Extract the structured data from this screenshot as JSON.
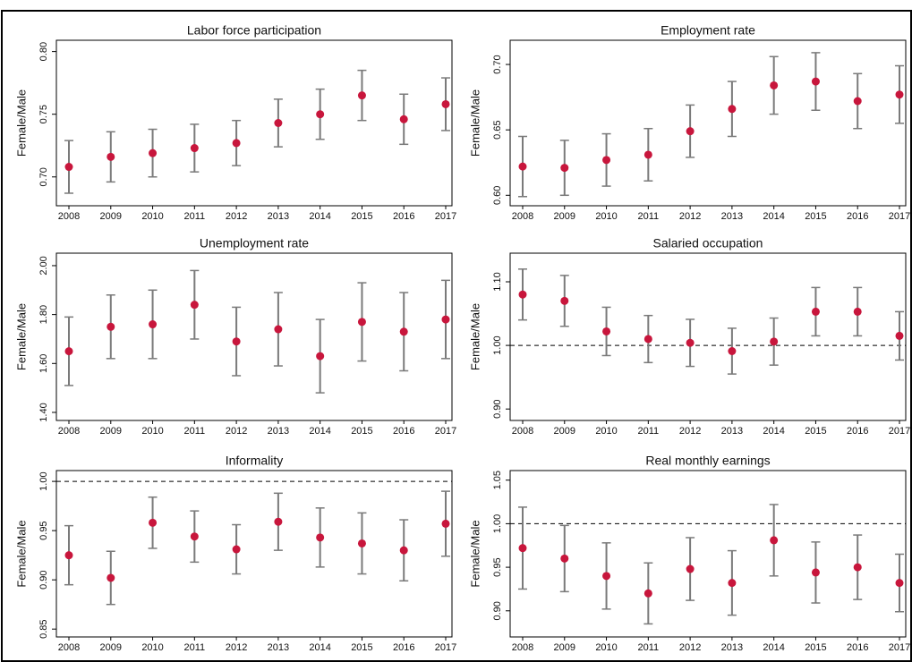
{
  "chart_data": [
    {
      "type": "scatter",
      "title": "Labor force participation",
      "y_label": "Female/Male",
      "categories": [
        "2008",
        "2009",
        "2010",
        "2011",
        "2012",
        "2013",
        "2014",
        "2015",
        "2016",
        "2017"
      ],
      "values": [
        0.708,
        0.716,
        0.719,
        0.723,
        0.727,
        0.743,
        0.75,
        0.765,
        0.746,
        0.758
      ],
      "errors": [
        0.021,
        0.02,
        0.019,
        0.019,
        0.018,
        0.019,
        0.02,
        0.02,
        0.02,
        0.021
      ],
      "color": "#c8163c",
      "error_color": "#7a7a7a",
      "ylim": [
        0.677,
        0.809
      ],
      "yticks": [
        {
          "value": 0.7,
          "label": "0.70"
        },
        {
          "value": 0.75,
          "label": "0.75"
        },
        {
          "value": 0.8,
          "label": "0.80"
        }
      ]
    },
    {
      "type": "scatter",
      "title": "Employment rate",
      "y_label": "Female/Male",
      "categories": [
        "2008",
        "2009",
        "2010",
        "2011",
        "2012",
        "2013",
        "2014",
        "2015",
        "2016",
        "2017"
      ],
      "values": [
        0.622,
        0.621,
        0.627,
        0.631,
        0.649,
        0.666,
        0.684,
        0.687,
        0.672,
        0.677
      ],
      "errors": [
        0.023,
        0.021,
        0.02,
        0.02,
        0.02,
        0.021,
        0.022,
        0.022,
        0.021,
        0.022
      ],
      "color": "#c8163c",
      "error_color": "#7a7a7a",
      "ylim": [
        0.592,
        0.7185
      ],
      "yticks": [
        {
          "value": 0.6,
          "label": "0.60"
        },
        {
          "value": 0.65,
          "label": "0.65"
        },
        {
          "value": 0.7,
          "label": "0.70"
        }
      ]
    },
    {
      "type": "scatter",
      "title": "Unemployment rate",
      "y_label": "Female/Male",
      "categories": [
        "2008",
        "2009",
        "2010",
        "2011",
        "2012",
        "2013",
        "2014",
        "2015",
        "2016",
        "2017"
      ],
      "values": [
        1.65,
        1.75,
        1.76,
        1.84,
        1.69,
        1.74,
        1.63,
        1.77,
        1.73,
        1.78
      ],
      "errors": [
        0.14,
        0.13,
        0.14,
        0.14,
        0.14,
        0.15,
        0.15,
        0.16,
        0.16,
        0.16
      ],
      "color": "#c8163c",
      "error_color": "#7a7a7a",
      "ylim": [
        1.367,
        2.051
      ],
      "yticks": [
        {
          "value": 1.4,
          "label": "1.40"
        },
        {
          "value": 1.6,
          "label": "1.60"
        },
        {
          "value": 1.8,
          "label": "1.80"
        },
        {
          "value": 2,
          "label": "2.00"
        }
      ]
    },
    {
      "type": "scatter",
      "title": "Salaried occupation",
      "y_label": "Female/Male",
      "categories": [
        "2008",
        "2009",
        "2010",
        "2011",
        "2012",
        "2013",
        "2014",
        "2015",
        "2016",
        "2017"
      ],
      "values": [
        1.08,
        1.07,
        1.022,
        1.01,
        1.004,
        0.991,
        1.006,
        1.053,
        1.053,
        1.015
      ],
      "errors": [
        0.04,
        0.04,
        0.038,
        0.037,
        0.037,
        0.036,
        0.037,
        0.038,
        0.038,
        0.038
      ],
      "color": "#c8163c",
      "error_color": "#7a7a7a",
      "reference_line": 1,
      "ylim": [
        0.882,
        1.145
      ],
      "yticks": [
        {
          "value": 0.9,
          "label": "0.90"
        },
        {
          "value": 1,
          "label": "1.00"
        },
        {
          "value": 1.1,
          "label": "1.10"
        }
      ]
    },
    {
      "type": "scatter",
      "title": "Informality",
      "y_label": "Female/Male",
      "categories": [
        "2008",
        "2009",
        "2010",
        "2011",
        "2012",
        "2013",
        "2014",
        "2015",
        "2016",
        "2017"
      ],
      "values": [
        0.925,
        0.902,
        0.958,
        0.944,
        0.931,
        0.959,
        0.943,
        0.937,
        0.93,
        0.957
      ],
      "errors": [
        0.03,
        0.027,
        0.026,
        0.026,
        0.025,
        0.029,
        0.03,
        0.031,
        0.031,
        0.033
      ],
      "color": "#c8163c",
      "error_color": "#7a7a7a",
      "reference_line": 1,
      "ylim": [
        0.842,
        1.011
      ],
      "yticks": [
        {
          "value": 0.85,
          "label": "0.85"
        },
        {
          "value": 0.9,
          "label": "0.90"
        },
        {
          "value": 0.95,
          "label": "0.95"
        },
        {
          "value": 1,
          "label": "1.00"
        }
      ]
    },
    {
      "type": "scatter",
      "title": "Real monthly earnings",
      "y_label": "Female/Male",
      "categories": [
        "2008",
        "2009",
        "2010",
        "2011",
        "2012",
        "2013",
        "2014",
        "2015",
        "2016",
        "2017"
      ],
      "values": [
        0.972,
        0.96,
        0.94,
        0.92,
        0.948,
        0.932,
        0.981,
        0.944,
        0.95,
        0.932
      ],
      "errors": [
        0.047,
        0.038,
        0.038,
        0.035,
        0.036,
        0.037,
        0.041,
        0.035,
        0.037,
        0.033
      ],
      "color": "#c8163c",
      "error_color": "#7a7a7a",
      "reference_line": 1,
      "ylim": [
        0.87,
        1.061
      ],
      "yticks": [
        {
          "value": 0.9,
          "label": "0.90"
        },
        {
          "value": 0.95,
          "label": "0.95"
        },
        {
          "value": 1,
          "label": "1.00"
        },
        {
          "value": 1.05,
          "label": "1.05"
        }
      ]
    }
  ]
}
